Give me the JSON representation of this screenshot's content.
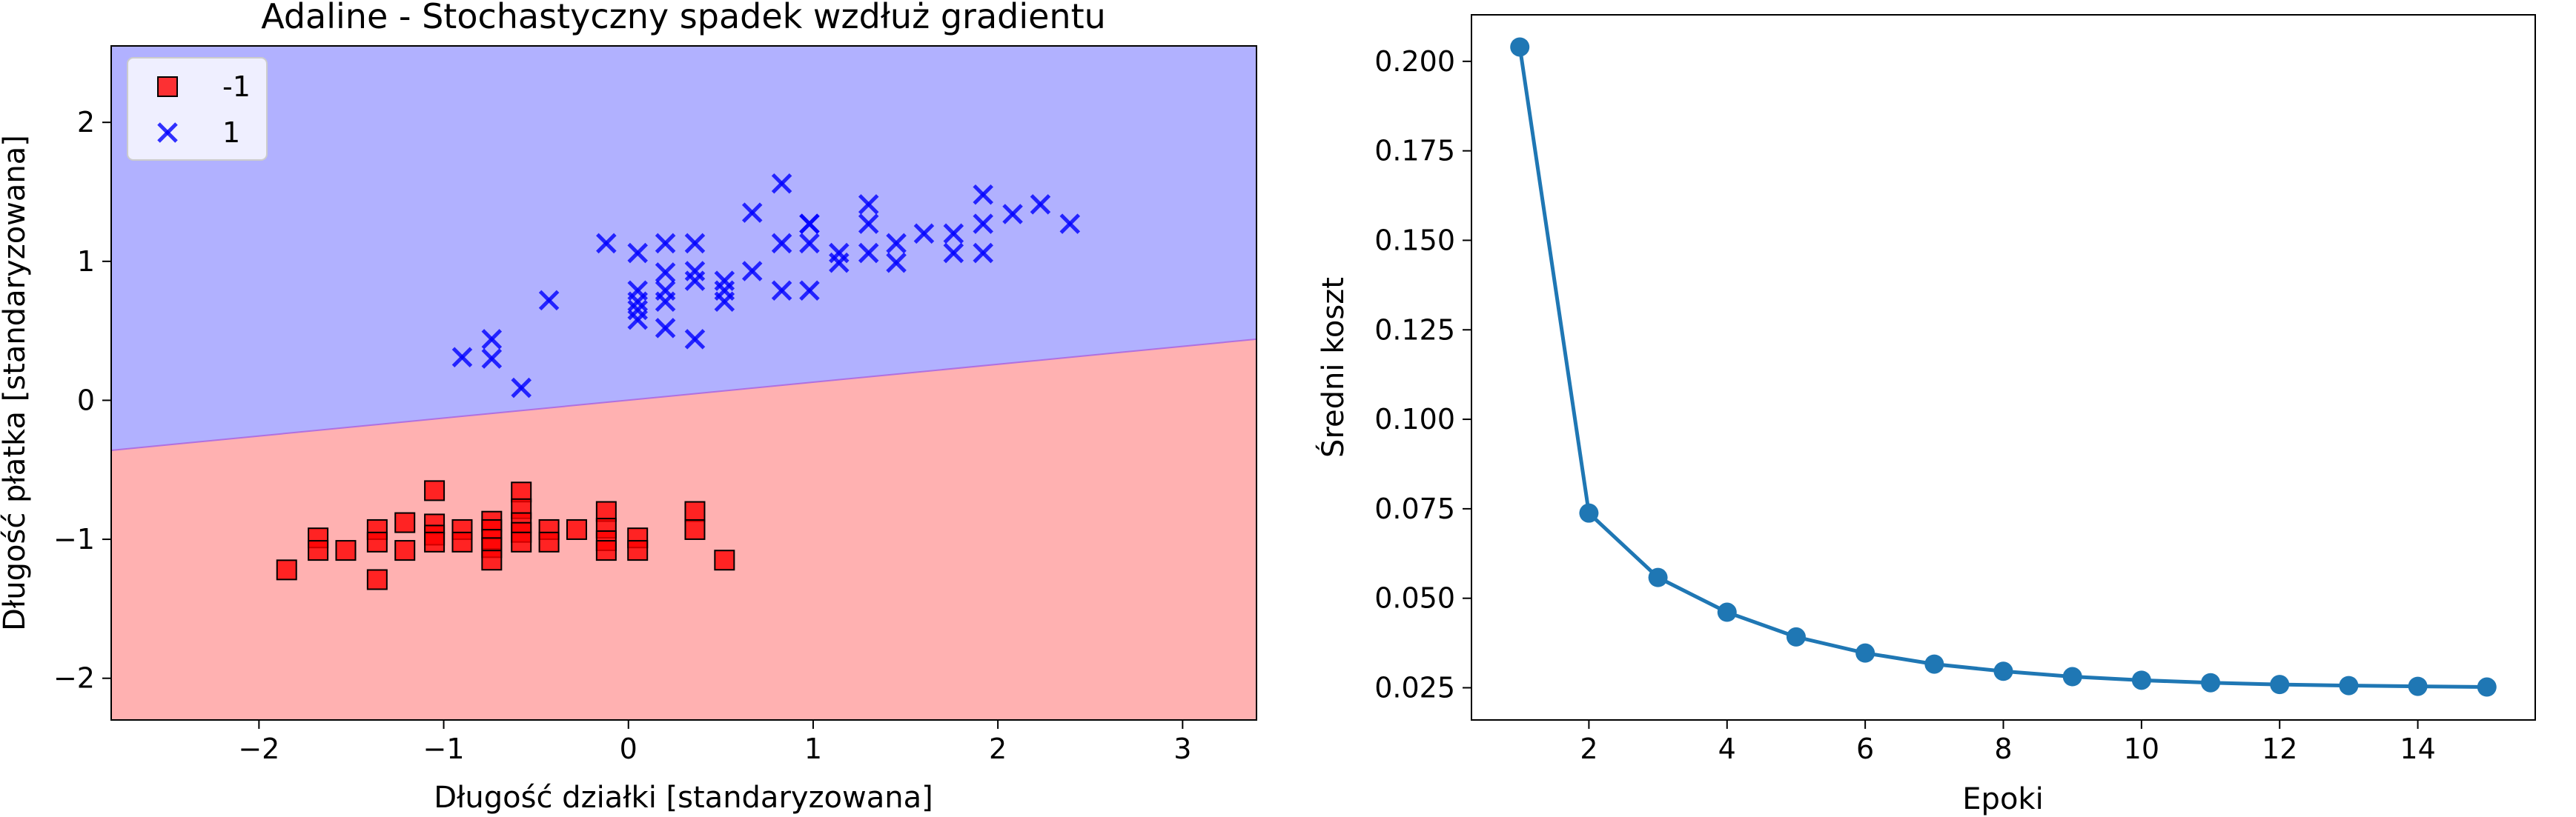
{
  "colors": {
    "class_neg": "#ff0000",
    "class_pos": "#0000ff",
    "region_neg": "#ffb1b1",
    "region_pos": "#b1b1ff",
    "cost_line": "#1f77b4"
  },
  "chart_data": [
    {
      "type": "scatter",
      "title": "Adaline - Stochastyczny spadek wzdłuż gradientu",
      "xlabel": "Długość działki [standaryzowana]",
      "ylabel": "Długość płatka [standaryzowana]",
      "xlim": [
        -2.8,
        3.4
      ],
      "ylim": [
        -2.3,
        2.55
      ],
      "xticks": [
        -2,
        -1,
        0,
        1,
        2,
        3
      ],
      "yticks": [
        -2,
        -1,
        0,
        1,
        2
      ],
      "xtick_labels": [
        "−2",
        "−1",
        "0",
        "1",
        "2",
        "3"
      ],
      "ytick_labels": [
        "−2",
        "−1",
        "0",
        "1",
        "2"
      ],
      "legend_position": "upper-left",
      "decision_boundary": {
        "x": [
          -2.8,
          3.4
        ],
        "y": [
          -0.36,
          0.44
        ]
      },
      "regions": [
        {
          "name": "-1",
          "color": "#ffb1b1",
          "side": "below"
        },
        {
          "name": "1",
          "color": "#b1b1ff",
          "side": "above"
        }
      ],
      "series": [
        {
          "name": "-1",
          "marker": "square",
          "color": "#ff0000",
          "points": [
            [
              -1.85,
              -1.22
            ],
            [
              -1.68,
              -0.99
            ],
            [
              -1.68,
              -1.08
            ],
            [
              -1.53,
              -1.08
            ],
            [
              -1.36,
              -0.93
            ],
            [
              -1.36,
              -1.02
            ],
            [
              -1.36,
              -1.29
            ],
            [
              -1.21,
              -0.88
            ],
            [
              -1.21,
              -1.08
            ],
            [
              -1.05,
              -0.65
            ],
            [
              -1.05,
              -0.89
            ],
            [
              -1.05,
              -0.97
            ],
            [
              -1.05,
              -1.02
            ],
            [
              -0.9,
              -0.93
            ],
            [
              -0.9,
              -1.02
            ],
            [
              -0.74,
              -0.87
            ],
            [
              -0.74,
              -0.93
            ],
            [
              -0.74,
              -1.0
            ],
            [
              -0.74,
              -1.06
            ],
            [
              -0.74,
              -1.15
            ],
            [
              -0.58,
              -0.66
            ],
            [
              -0.58,
              -0.78
            ],
            [
              -0.58,
              -0.88
            ],
            [
              -0.58,
              -0.95
            ],
            [
              -0.58,
              -1.02
            ],
            [
              -0.43,
              -0.93
            ],
            [
              -0.43,
              -1.02
            ],
            [
              -0.28,
              -0.93
            ],
            [
              -0.12,
              -0.8
            ],
            [
              -0.12,
              -0.92
            ],
            [
              -0.12,
              -1.01
            ],
            [
              -0.12,
              -1.08
            ],
            [
              0.05,
              -0.99
            ],
            [
              0.05,
              -1.08
            ],
            [
              0.36,
              -0.8
            ],
            [
              0.36,
              -0.93
            ],
            [
              0.52,
              -1.15
            ]
          ]
        },
        {
          "name": "1",
          "marker": "x",
          "color": "#0000ff",
          "points": [
            [
              -0.9,
              0.31
            ],
            [
              -0.74,
              0.3
            ],
            [
              -0.74,
              0.44
            ],
            [
              -0.58,
              0.09
            ],
            [
              -0.43,
              0.72
            ],
            [
              -0.12,
              1.13
            ],
            [
              0.05,
              0.58
            ],
            [
              0.05,
              0.65
            ],
            [
              0.05,
              0.71
            ],
            [
              0.05,
              0.79
            ],
            [
              0.05,
              1.06
            ],
            [
              0.2,
              0.52
            ],
            [
              0.2,
              0.71
            ],
            [
              0.2,
              0.79
            ],
            [
              0.2,
              0.92
            ],
            [
              0.2,
              1.13
            ],
            [
              0.36,
              0.44
            ],
            [
              0.36,
              0.86
            ],
            [
              0.36,
              0.93
            ],
            [
              0.36,
              1.13
            ],
            [
              0.52,
              0.71
            ],
            [
              0.52,
              0.79
            ],
            [
              0.52,
              0.86
            ],
            [
              0.67,
              0.93
            ],
            [
              0.67,
              1.35
            ],
            [
              0.83,
              0.79
            ],
            [
              0.83,
              1.13
            ],
            [
              0.83,
              1.56
            ],
            [
              0.98,
              0.79
            ],
            [
              0.98,
              1.13
            ],
            [
              0.98,
              1.27
            ],
            [
              0.98,
              1.27
            ],
            [
              1.14,
              0.99
            ],
            [
              1.14,
              1.06
            ],
            [
              1.3,
              1.06
            ],
            [
              1.3,
              1.27
            ],
            [
              1.3,
              1.41
            ],
            [
              1.45,
              0.99
            ],
            [
              1.45,
              1.13
            ],
            [
              1.6,
              1.2
            ],
            [
              1.76,
              1.06
            ],
            [
              1.76,
              1.2
            ],
            [
              1.92,
              1.06
            ],
            [
              1.92,
              1.27
            ],
            [
              1.92,
              1.48
            ],
            [
              2.08,
              1.34
            ],
            [
              2.23,
              1.41
            ],
            [
              2.39,
              1.27
            ]
          ]
        }
      ]
    },
    {
      "type": "line",
      "title": "",
      "xlabel": "Epoki",
      "ylabel": "Średni koszt",
      "xlim": [
        0.3,
        15.7
      ],
      "ylim": [
        0.016,
        0.213
      ],
      "xticks": [
        2,
        4,
        6,
        8,
        10,
        12,
        14
      ],
      "yticks": [
        0.025,
        0.05,
        0.075,
        0.1,
        0.125,
        0.15,
        0.175,
        0.2
      ],
      "xtick_labels": [
        "2",
        "4",
        "6",
        "8",
        "10",
        "12",
        "14"
      ],
      "ytick_labels": [
        "0.025",
        "0.050",
        "0.075",
        "0.100",
        "0.125",
        "0.150",
        "0.175",
        "0.200"
      ],
      "grid": false,
      "series": [
        {
          "marker": "circle",
          "color": "#1f77b4",
          "x": [
            1,
            2,
            3,
            4,
            5,
            6,
            7,
            8,
            9,
            10,
            11,
            12,
            13,
            14,
            15
          ],
          "y": [
            0.204,
            0.0738,
            0.0558,
            0.0461,
            0.0392,
            0.0347,
            0.0316,
            0.0296,
            0.0281,
            0.0271,
            0.0264,
            0.0259,
            0.0256,
            0.0254,
            0.0252
          ]
        }
      ]
    }
  ]
}
